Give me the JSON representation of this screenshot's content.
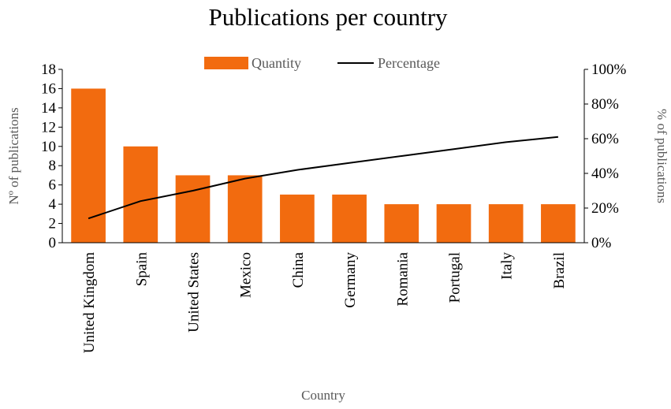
{
  "chart_data": {
    "type": "bar+line",
    "title": "Publications per country",
    "xlabel": "Country",
    "ylabel": "Nº of publications",
    "y2label": "% of publications",
    "categories": [
      "United Kingdom",
      "Spain",
      "United States",
      "Mexico",
      "China",
      "Germany",
      "Romania",
      "Portugal",
      "Italy",
      "Brazil"
    ],
    "series": [
      {
        "name": "Quantity",
        "type": "bar",
        "axis": "left",
        "values": [
          16,
          10,
          7,
          7,
          5,
          5,
          4,
          4,
          4,
          4
        ]
      },
      {
        "name": "Percentage",
        "type": "line",
        "axis": "right",
        "values": [
          0.14,
          0.24,
          0.3,
          0.37,
          0.42,
          0.46,
          0.5,
          0.54,
          0.58,
          0.61
        ]
      }
    ],
    "ylim": [
      0,
      18
    ],
    "yticks": [
      "0",
      "2",
      "4",
      "6",
      "8",
      "10",
      "12",
      "14",
      "16",
      "18"
    ],
    "y2lim": [
      0,
      1
    ],
    "y2ticks": [
      "0%",
      "20%",
      "40%",
      "60%",
      "80%",
      "100%"
    ],
    "legend": {
      "position": "top",
      "entries": [
        "Quantity",
        "Percentage"
      ]
    },
    "grid": false,
    "colors": {
      "bar": "#F26B0F",
      "line": "#000000",
      "axis": "#000000"
    }
  }
}
